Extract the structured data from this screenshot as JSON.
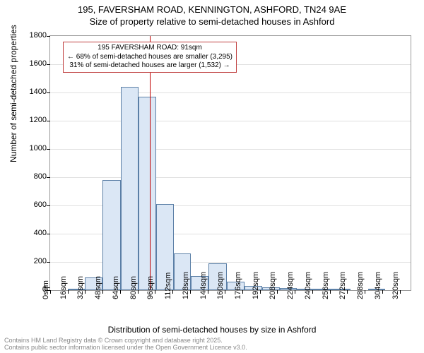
{
  "title": {
    "line1": "195, FAVERSHAM ROAD, KENNINGTON, ASHFORD, TN24 9AE",
    "line2": "Size of property relative to semi-detached houses in Ashford"
  },
  "ylabel": "Number of semi-detached properties",
  "xlabel": "Distribution of semi-detached houses by size in Ashford",
  "footer": {
    "line1": "Contains HM Land Registry data © Crown copyright and database right 2025.",
    "line2": "Contains public sector information licensed under the Open Government Licence v3.0."
  },
  "annotation": {
    "line1": "195 FAVERSHAM ROAD: 91sqm",
    "line2": "← 68% of semi-detached houses are smaller (3,295)",
    "line3": "31% of semi-detached houses are larger (1,532) →",
    "marker_x": 91
  },
  "chart": {
    "type": "histogram",
    "ylim": [
      0,
      1800
    ],
    "ytick_step": 200,
    "xlim": [
      0,
      330
    ],
    "xtick_step": 16,
    "xtick_suffix": "sqm",
    "bar_color": "#dbe7f5",
    "bar_border_color": "#5b7fa6",
    "grid_color": "#e0e0e0",
    "background_color": "#ffffff",
    "marker_color": "#c00000",
    "annotation_border": "#c04040",
    "title_fontsize": 13,
    "label_fontsize": 12,
    "tick_fontsize": 11,
    "bins": [
      {
        "start": 16,
        "end": 32,
        "count": 5
      },
      {
        "start": 32,
        "end": 48,
        "count": 90
      },
      {
        "start": 48,
        "end": 65,
        "count": 780
      },
      {
        "start": 65,
        "end": 81,
        "count": 1440
      },
      {
        "start": 81,
        "end": 97,
        "count": 1370
      },
      {
        "start": 97,
        "end": 113,
        "count": 610
      },
      {
        "start": 113,
        "end": 129,
        "count": 260
      },
      {
        "start": 129,
        "end": 145,
        "count": 100
      },
      {
        "start": 145,
        "end": 162,
        "count": 190
      },
      {
        "start": 162,
        "end": 178,
        "count": 60
      },
      {
        "start": 178,
        "end": 194,
        "count": 30
      },
      {
        "start": 194,
        "end": 210,
        "count": 20
      },
      {
        "start": 210,
        "end": 226,
        "count": 15
      },
      {
        "start": 226,
        "end": 242,
        "count": 10
      },
      {
        "start": 242,
        "end": 258,
        "count": 8
      },
      {
        "start": 258,
        "end": 275,
        "count": 5
      },
      {
        "start": 291,
        "end": 307,
        "count": 5
      }
    ]
  }
}
